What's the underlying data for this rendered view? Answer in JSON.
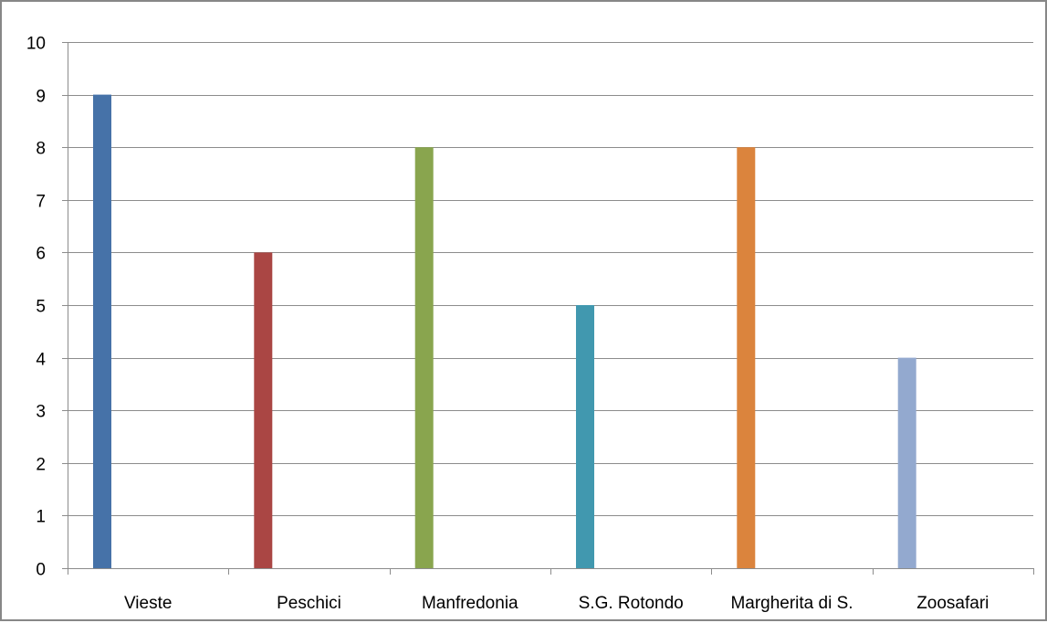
{
  "chart_data": {
    "type": "bar",
    "categories": [
      "Vieste",
      "Peschici",
      "Manfredonia",
      "S.G. Rotondo",
      "Margherita di S.",
      "Zoosafari"
    ],
    "values": [
      9,
      6,
      8,
      5,
      8,
      4
    ],
    "colors": [
      "#4672a8",
      "#aa4644",
      "#89a54e",
      "#4198af",
      "#db843d",
      "#93a9cf"
    ],
    "ylim": [
      0,
      10
    ],
    "yticks": [
      0,
      1,
      2,
      3,
      4,
      5,
      6,
      7,
      8,
      9,
      10
    ],
    "grid": true,
    "title": "",
    "xlabel": "",
    "ylabel": ""
  }
}
